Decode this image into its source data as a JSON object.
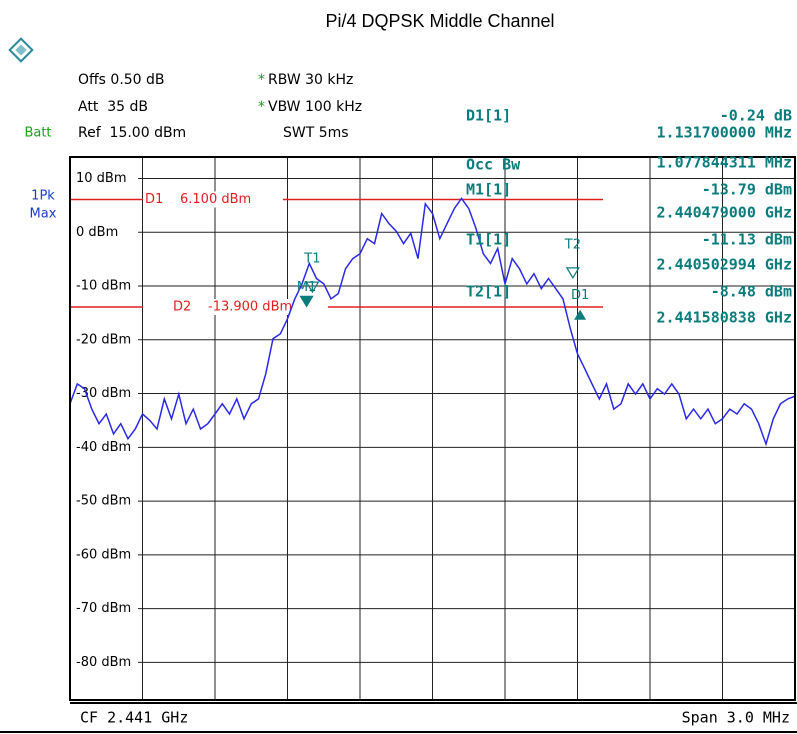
{
  "header": {
    "batt": "Batt",
    "trace_mode": [
      "1Pk",
      "Max"
    ],
    "settings_left": [
      "Offs 0.50 dB",
      "Att  35 dB",
      "Ref  15.00 dBm"
    ],
    "settings_mid": [
      {
        "flag": "*",
        "text": "RBW 30 kHz"
      },
      {
        "flag": "*",
        "text": "VBW 100 kHz"
      },
      {
        "text": "SWT 5ms"
      }
    ]
  },
  "chart_data": {
    "type": "line",
    "title": "Pi/4 DQPSK Middle Channel",
    "x": [
      2.4395,
      2.43953,
      2.43956,
      2.43959,
      2.43962,
      2.43965,
      2.43968,
      2.43971,
      2.43974,
      2.43977,
      2.4398,
      2.43983,
      2.43986,
      2.43989,
      2.43992,
      2.43995,
      2.43998,
      2.44001,
      2.44004,
      2.44007,
      2.4401,
      2.44013,
      2.44016,
      2.44019,
      2.44022,
      2.44025,
      2.44028,
      2.44031,
      2.44034,
      2.44037,
      2.4404,
      2.44043,
      2.44046,
      2.44049,
      2.44052,
      2.44055,
      2.44058,
      2.44061,
      2.44064,
      2.44067,
      2.4407,
      2.44073,
      2.44076,
      2.44079,
      2.44082,
      2.44085,
      2.44088,
      2.44091,
      2.44094,
      2.44097,
      2.441,
      2.44103,
      2.44106,
      2.44109,
      2.44112,
      2.44115,
      2.44118,
      2.44121,
      2.44124,
      2.44127,
      2.4413,
      2.44133,
      2.44136,
      2.44139,
      2.44142,
      2.44145,
      2.44148,
      2.44151,
      2.44154,
      2.44157,
      2.4416,
      2.44163,
      2.44166,
      2.44169,
      2.44172,
      2.44175,
      2.44178,
      2.44181,
      2.44184,
      2.44187,
      2.4419,
      2.44193,
      2.44196,
      2.44199,
      2.44202,
      2.44205,
      2.44208,
      2.44211,
      2.44214,
      2.44217,
      2.4422,
      2.44223,
      2.44226,
      2.44229,
      2.44232,
      2.44235,
      2.44238,
      2.44241,
      2.44244,
      2.44247,
      2.4425
    ],
    "series": [
      {
        "color": "#2a2ae6",
        "values": [
          -31.9,
          -28.2,
          -29.1,
          -32.9,
          -35.6,
          -33.8,
          -37.5,
          -35.6,
          -38.4,
          -36.6,
          -33.8,
          -35.0,
          -36.6,
          -31.0,
          -34.7,
          -30.1,
          -35.6,
          -32.9,
          -36.6,
          -35.6,
          -33.8,
          -31.9,
          -33.8,
          -31.0,
          -34.7,
          -31.9,
          -31.0,
          -26.3,
          -19.8,
          -18.9,
          -16.1,
          -12.4,
          -9.6,
          -5.8,
          -8.6,
          -9.6,
          -12.4,
          -11.4,
          -6.8,
          -4.9,
          -4.0,
          -1.2,
          -2.1,
          3.5,
          1.6,
          0.2,
          -2.1,
          -0.2,
          -4.9,
          5.3,
          3.5,
          -1.2,
          1.6,
          4.4,
          6.3,
          4.4,
          0.7,
          -4.0,
          -5.8,
          -3.0,
          -9.6,
          -4.9,
          -6.8,
          -9.6,
          -7.7,
          -10.5,
          -8.6,
          -10.5,
          -12.4,
          -17.9,
          -22.6,
          -25.4,
          -28.2,
          -31.0,
          -28.2,
          -32.9,
          -31.9,
          -28.2,
          -30.1,
          -28.2,
          -31.0,
          -29.1,
          -30.1,
          -28.2,
          -30.1,
          -34.7,
          -32.9,
          -34.7,
          -32.9,
          -35.6,
          -34.7,
          -32.9,
          -33.8,
          -31.9,
          -32.9,
          -35.6,
          -39.4,
          -34.7,
          -31.9,
          -31.0,
          -30.5
        ]
      }
    ],
    "xlim": [
      2.4395,
      2.4425
    ],
    "xticks": [
      2.4398,
      2.4401,
      2.4404,
      2.4407,
      2.441,
      2.4413,
      2.4416,
      2.4419,
      2.4422
    ],
    "ylim": [
      -87,
      14
    ],
    "yticks": [
      {
        "value": 10,
        "label": "10 dBm"
      },
      {
        "value": 0,
        "label": "0 dBm"
      },
      {
        "value": -10,
        "label": "-10 dBm"
      },
      {
        "value": -20,
        "label": "-20 dBm"
      },
      {
        "value": -30,
        "label": "-30 dBm"
      },
      {
        "value": -40,
        "label": "-40 dBm"
      },
      {
        "value": -50,
        "label": "-50 dBm"
      },
      {
        "value": -60,
        "label": "-60 dBm"
      },
      {
        "value": -70,
        "label": "-70 dBm"
      },
      {
        "value": -80,
        "label": "-80 dBm"
      }
    ],
    "grid": true,
    "lines": [
      {
        "name": "D1",
        "value": 6.1,
        "value_label": "6.100 dBm",
        "color": "#e02020"
      },
      {
        "name": "D2",
        "value": -13.9,
        "value_label": "-13.900 dBm",
        "color": "#e02020"
      }
    ],
    "markers": [
      {
        "label": "M1",
        "x": 2.440479,
        "y": -13.79
      },
      {
        "label": "T1",
        "x": 2.440502994,
        "y": -11.13
      },
      {
        "label": "T2",
        "x": 2.441580838,
        "y": -8.48
      }
    ],
    "delta_marker": {
      "label": "D1",
      "dx": 0.0011317,
      "dy": -0.24
    },
    "marker_table": [
      [
        "D1[1]",
        "-0.24 dB",
        "1.131700000 MHz"
      ],
      [
        "Occ Bw",
        "1.077844311 MHz"
      ],
      [
        "M1[1]",
        "-13.79 dBm",
        "2.440479000 GHz"
      ],
      [
        "T1[1]",
        "-11.13 dBm",
        "2.440502994 GHz"
      ],
      [
        "T2[1]",
        "-8.48 dBm",
        "2.441580838 GHz"
      ]
    ]
  },
  "footer": {
    "center": "CF 2.441 GHz",
    "span": "Span 3.0 MHz"
  }
}
